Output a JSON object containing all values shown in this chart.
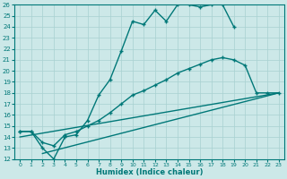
{
  "xlabel": "Humidex (Indice chaleur)",
  "ylabel": "",
  "bg_color": "#cce8e8",
  "grid_color": "#a8d0d0",
  "line_color": "#007878",
  "xlim": [
    -0.5,
    23.5
  ],
  "ylim": [
    12,
    26
  ],
  "x_ticks": [
    0,
    1,
    2,
    3,
    4,
    5,
    6,
    7,
    8,
    9,
    10,
    11,
    12,
    13,
    14,
    15,
    16,
    17,
    18,
    19,
    20,
    21,
    22,
    23
  ],
  "y_ticks": [
    12,
    13,
    14,
    15,
    16,
    17,
    18,
    19,
    20,
    21,
    22,
    23,
    24,
    25,
    26
  ],
  "lines": [
    {
      "x": [
        0,
        1,
        2,
        3,
        4,
        5,
        6,
        7,
        8,
        9,
        10,
        11,
        12,
        13,
        14,
        15,
        16,
        17,
        18,
        19,
        20,
        21,
        22,
        23
      ],
      "y": [
        14.5,
        14.5,
        13.0,
        12.0,
        14.0,
        14.2,
        15.5,
        17.8,
        19.2,
        21.8,
        24.5,
        24.2,
        25.5,
        24.5,
        26.0,
        26.0,
        25.8,
        26.0,
        26.0,
        24.0,
        null,
        null,
        null,
        null
      ],
      "has_markers": true,
      "linewidth": 1.0
    },
    {
      "x": [
        0,
        1,
        2,
        3,
        4,
        5,
        6,
        7,
        8,
        9,
        10,
        11,
        12,
        13,
        14,
        15,
        16,
        17,
        18,
        19,
        20,
        21,
        22,
        23
      ],
      "y": [
        14.5,
        14.5,
        13.5,
        13.2,
        14.2,
        14.5,
        15.0,
        15.5,
        16.2,
        17.0,
        17.8,
        18.2,
        18.7,
        19.2,
        19.8,
        20.2,
        20.6,
        21.0,
        21.2,
        21.0,
        20.5,
        18.0,
        18.0,
        18.0
      ],
      "has_markers": true,
      "linewidth": 1.0
    },
    {
      "x": [
        0,
        23
      ],
      "y": [
        14.0,
        18.0
      ],
      "has_markers": false,
      "linewidth": 1.0
    },
    {
      "x": [
        2,
        23
      ],
      "y": [
        12.5,
        18.0
      ],
      "has_markers": false,
      "linewidth": 1.0
    }
  ]
}
